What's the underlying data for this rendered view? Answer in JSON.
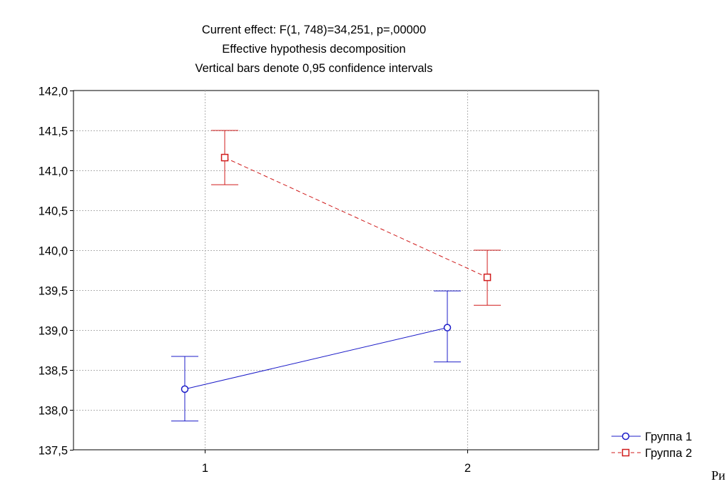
{
  "chart_data": {
    "type": "line",
    "title": [
      "Current effect: F(1, 748)=34,251, p=,00000",
      "Effective hypothesis decomposition",
      "Vertical bars denote 0,95 confidence intervals"
    ],
    "categories": [
      "1",
      "2"
    ],
    "ylim": [
      137.5,
      142.0
    ],
    "yticks": [
      "137,5",
      "138,0",
      "138,5",
      "139,0",
      "139,5",
      "140,0",
      "140,5",
      "141,0",
      "141,5",
      "142,0"
    ],
    "grid": true,
    "legend_position": "bottom-right",
    "series": [
      {
        "name": "Группа 1",
        "color": "#1c1cc8",
        "marker": "circle",
        "line_style": "solid",
        "values": [
          138.26,
          139.03
        ],
        "ci_low": [
          137.86,
          138.6
        ],
        "ci_high": [
          138.67,
          139.49
        ]
      },
      {
        "name": "Группа 2",
        "color": "#d01c1c",
        "marker": "square",
        "line_style": "dashed",
        "values": [
          141.16,
          139.66
        ],
        "ci_low": [
          140.82,
          139.31
        ],
        "ci_high": [
          141.5,
          140.0
        ]
      }
    ]
  },
  "footer_text": "Ри"
}
